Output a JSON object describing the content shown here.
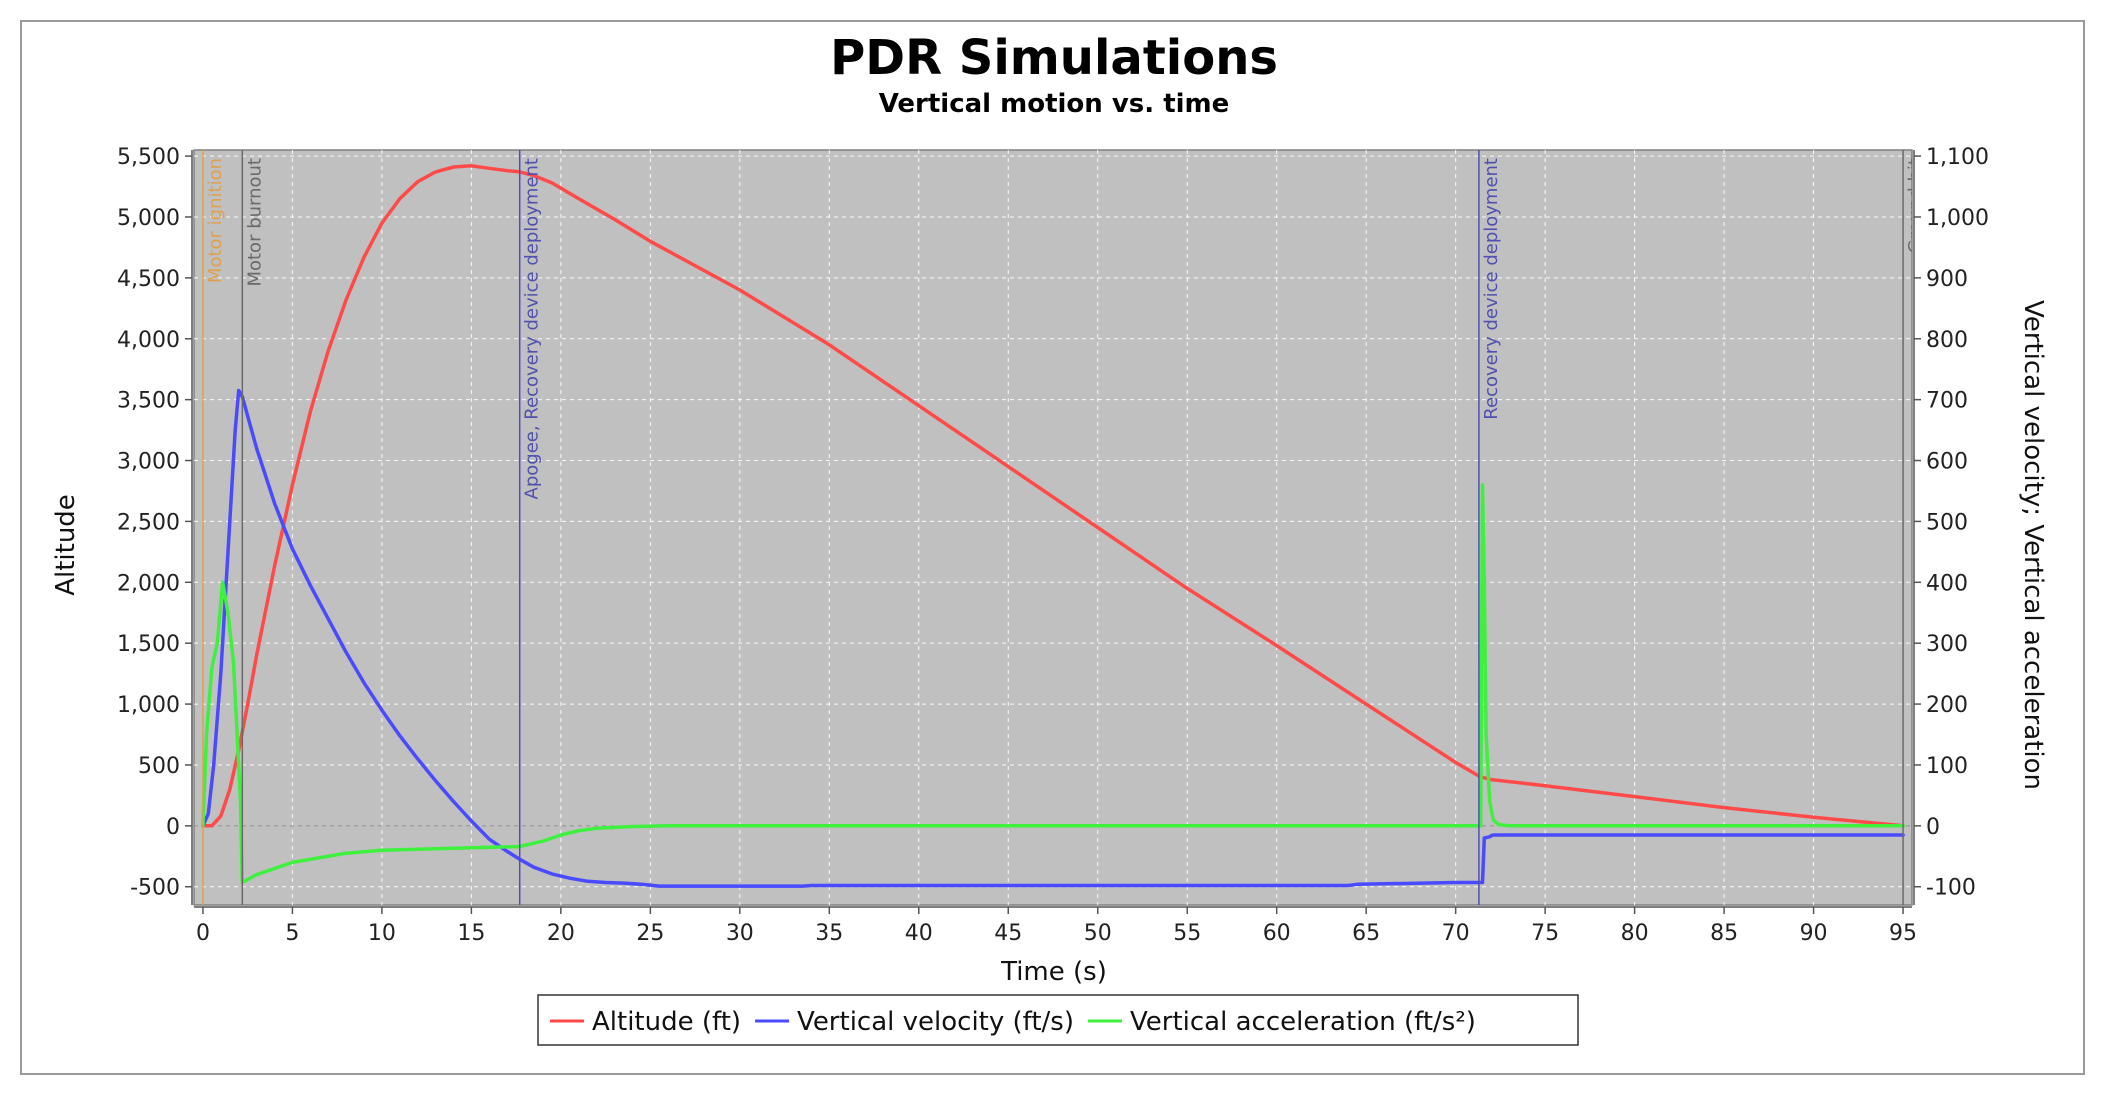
{
  "chart_data": {
    "type": "line",
    "title": "PDR Simulations",
    "subtitle": "Vertical motion vs. time",
    "xlabel": "Time (s)",
    "ylabel_left": "Altitude",
    "ylabel_right": "Vertical velocity; Vertical acceleration",
    "xlim": [
      -0.5,
      95.5
    ],
    "ylim_left": [
      -650,
      5550
    ],
    "ylim_right": [
      -130,
      1110
    ],
    "xticks": [
      0,
      5,
      10,
      15,
      20,
      25,
      30,
      35,
      40,
      45,
      50,
      55,
      60,
      65,
      70,
      75,
      80,
      85,
      90,
      95
    ],
    "xtick_labels": [
      "0",
      "5",
      "10",
      "15",
      "20",
      "25",
      "30",
      "35",
      "40",
      "45",
      "50",
      "55",
      "60",
      "65",
      "70",
      "75",
      "80",
      "85",
      "90",
      "95"
    ],
    "yticks_left": [
      -500,
      0,
      500,
      1000,
      1500,
      2000,
      2500,
      3000,
      3500,
      4000,
      4500,
      5000,
      5500
    ],
    "ytick_labels_left": [
      "-500",
      "0",
      "500",
      "1,000",
      "1,500",
      "2,000",
      "2,500",
      "3,000",
      "3,500",
      "4,000",
      "4,500",
      "5,000",
      "5,500"
    ],
    "yticks_right": [
      -100,
      0,
      100,
      200,
      300,
      400,
      500,
      600,
      700,
      800,
      900,
      1000,
      1100
    ],
    "ytick_labels_right": [
      "-100",
      "0",
      "100",
      "200",
      "300",
      "400",
      "500",
      "600",
      "700",
      "800",
      "900",
      "1,000",
      "1,100"
    ],
    "grid": true,
    "legend_position": "bottom-center",
    "colors": {
      "plot_background": "#c0c0c0",
      "altitude": "#ff4a4a",
      "velocity": "#4a4aff",
      "acceleration": "#3ff03f",
      "motor_ignition": "#e0a050",
      "motor_burnout": "#6a6a6a",
      "apogee": "#5050b0",
      "recovery": "#5050b0",
      "ground_hit": "#6a6a6a"
    },
    "series": [
      {
        "name": "Altitude (ft)",
        "axis": "left",
        "x": [
          0,
          0.5,
          1,
          1.5,
          2,
          2.5,
          3,
          4,
          5,
          6,
          7,
          8,
          9,
          10,
          11,
          12,
          13,
          14,
          15,
          16,
          17,
          17.7,
          18.5,
          19.5,
          21,
          23,
          25,
          30,
          35,
          40,
          45,
          50,
          55,
          60,
          65,
          70,
          71.4,
          72,
          75,
          80,
          85,
          90,
          95
        ],
        "values": [
          0,
          0,
          80,
          300,
          620,
          1000,
          1400,
          2130,
          2800,
          3400,
          3900,
          4320,
          4670,
          4950,
          5150,
          5290,
          5370,
          5410,
          5420,
          5400,
          5380,
          5370,
          5340,
          5280,
          5150,
          4980,
          4800,
          4400,
          3950,
          3450,
          2950,
          2450,
          1950,
          1480,
          1000,
          520,
          400,
          380,
          330,
          240,
          150,
          70,
          0
        ]
      },
      {
        "name": "Vertical velocity (ft/s)",
        "axis": "right",
        "x": [
          0,
          0.3,
          0.6,
          1.0,
          1.4,
          1.8,
          2.0,
          2.2,
          3,
          4,
          5,
          6,
          7,
          8,
          9,
          10,
          11,
          12,
          13,
          14,
          15,
          16,
          17,
          17.7,
          18.5,
          19.5,
          20.5,
          21.5,
          22.5,
          23.5,
          24.5,
          25.5,
          28,
          33.5,
          34,
          40,
          50,
          60,
          64,
          64.5,
          70,
          71.5,
          71.6,
          71.9,
          72.0,
          72.1,
          95
        ],
        "values": [
          0,
          20,
          100,
          250,
          450,
          650,
          715,
          705,
          620,
          530,
          455,
          395,
          340,
          285,
          235,
          190,
          148,
          110,
          74,
          40,
          8,
          -22,
          -42,
          -55,
          -68,
          -79,
          -86,
          -91,
          -93,
          -94,
          -96,
          -99,
          -99,
          -99,
          -98,
          -98,
          -98,
          -98,
          -98,
          -96,
          -93,
          -93,
          -20,
          -18,
          -16,
          -15,
          -15
        ]
      },
      {
        "name": "Vertical acceleration (ft/s²)",
        "axis": "right",
        "x": [
          0,
          0.2,
          0.5,
          0.8,
          1.1,
          1.4,
          1.7,
          2.0,
          2.1,
          2.2,
          3,
          5,
          8,
          10,
          15,
          17.7,
          19,
          20,
          21,
          22,
          24,
          26,
          30,
          70,
          71.4,
          71.5,
          71.6,
          71.7,
          71.9,
          72.1,
          72.4,
          73,
          95
        ],
        "values": [
          0,
          150,
          260,
          300,
          400,
          350,
          270,
          100,
          40,
          -93,
          -80,
          -60,
          -45,
          -40,
          -36,
          -34,
          -25,
          -15,
          -8,
          -4,
          -1,
          0,
          0,
          0,
          0,
          560,
          400,
          150,
          40,
          10,
          2,
          0,
          0
        ]
      }
    ],
    "events": [
      {
        "label": "Motor ignition",
        "x": 0.0,
        "color_key": "motor_ignition"
      },
      {
        "label": "Motor burnout",
        "x": 2.2,
        "color_key": "motor_burnout"
      },
      {
        "label": "Apogee, Recovery device deployment",
        "x": 17.7,
        "color_key": "apogee"
      },
      {
        "label": "Recovery device deployment",
        "x": 71.3,
        "color_key": "recovery"
      },
      {
        "label": "Ground hit",
        "x": 95.0,
        "color_key": "ground_hit"
      }
    ]
  }
}
